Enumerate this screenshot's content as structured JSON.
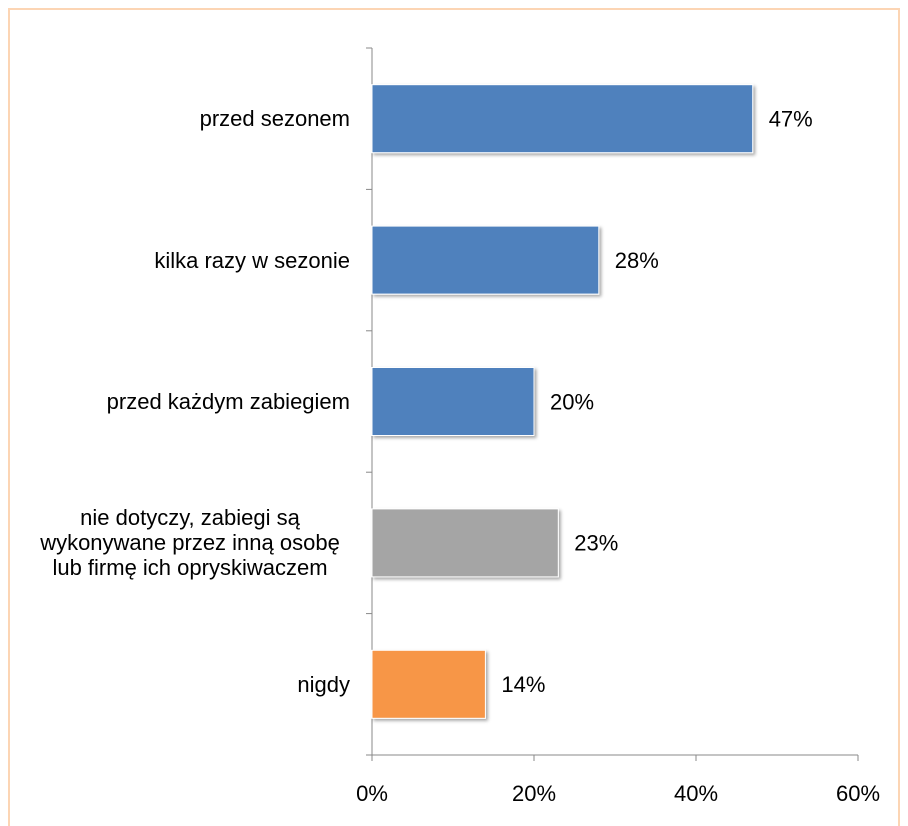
{
  "chart_data": {
    "type": "bar",
    "orientation": "horizontal",
    "categories": [
      "przed sezonem",
      "kilka razy w sezonie",
      "przed każdym zabiegiem",
      "nie dotyczy, zabiegi są wykonywane przez inną osobę lub firmę ich opryskiwaczem",
      "nigdy"
    ],
    "values": [
      47,
      28,
      20,
      23,
      14
    ],
    "value_labels": [
      "47%",
      "28%",
      "20%",
      "23%",
      "14%"
    ],
    "colors": [
      "#4f81bd",
      "#4f81bd",
      "#4f81bd",
      "#a5a5a5",
      "#f79646"
    ],
    "xlim": [
      0,
      60
    ],
    "xticks": [
      {
        "value": 0,
        "label": "0%"
      },
      {
        "value": 20,
        "label": "20%"
      },
      {
        "value": 40,
        "label": "40%"
      },
      {
        "value": 60,
        "label": "60%"
      }
    ],
    "grid": false
  }
}
